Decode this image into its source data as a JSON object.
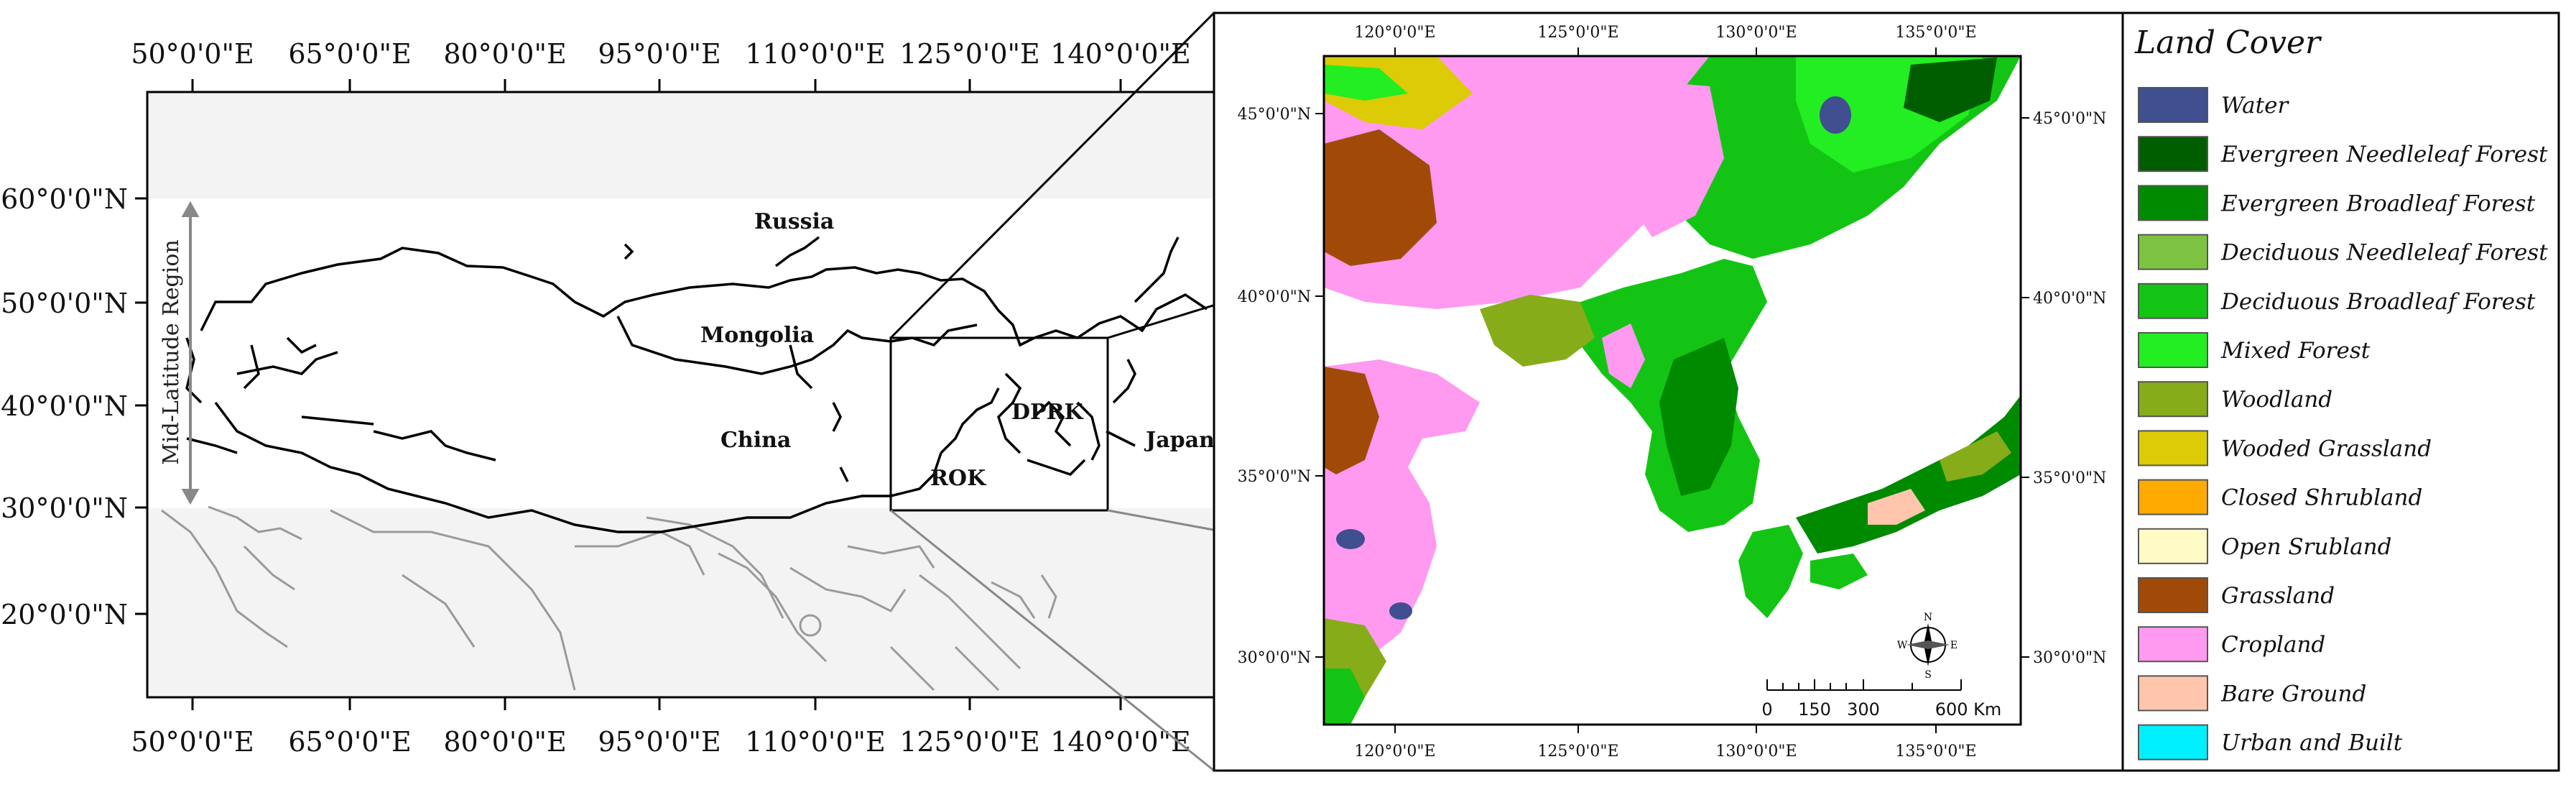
{
  "left_map": {
    "top_lon_labels": [
      "50°0'0\"E",
      "65°0'0\"E",
      "80°0'0\"E",
      "95°0'0\"E",
      "110°0'0\"E",
      "125°0'0\"E",
      "140°0'0\"E"
    ],
    "bottom_lon_labels": [
      "50°0'0\"E",
      "65°0'0\"E",
      "80°0'0\"E",
      "95°0'0\"E",
      "110°0'0\"E",
      "125°0'0\"E",
      "140°0'0\"E"
    ],
    "lat_labels": [
      "60°0'0\"N",
      "50°0'0\"N",
      "40°0'0\"N",
      "30°0'0\"N",
      "20°0'0\"N"
    ],
    "region_label": "Mid-Latitude Region",
    "countries": {
      "russia": "Russia",
      "mongolia": "Mongolia",
      "china": "China",
      "dprk": "DPRK",
      "rok": "ROK",
      "japan": "Japan"
    }
  },
  "right_map": {
    "top_lon_labels": [
      "120°0'0\"E",
      "125°0'0\"E",
      "130°0'0\"E",
      "135°0'0\"E"
    ],
    "bottom_lon_labels": [
      "120°0'0\"E",
      "125°0'0\"E",
      "130°0'0\"E",
      "135°0'0\"E"
    ],
    "left_lat_labels": [
      "45°0'0\"N",
      "40°0'0\"N",
      "35°0'0\"N",
      "30°0'0\"N"
    ],
    "right_lat_labels": [
      "45°0'0\"N",
      "40°0'0\"N",
      "35°0'0\"N",
      "30°0'0\"N"
    ],
    "scale_bar": [
      "0",
      "150",
      "300",
      "600 Km"
    ],
    "compass": {
      "n": "N",
      "s": "S",
      "e": "E",
      "w": "W"
    }
  },
  "legend": {
    "title": "Land Cover",
    "items": [
      {
        "label": "Water",
        "color": "#3f4f8f"
      },
      {
        "label": "Evergreen Needleleaf Forest",
        "color": "#005e00"
      },
      {
        "label": "Evergreen Broadleaf Forest",
        "color": "#008a00"
      },
      {
        "label": "Deciduous Needleleaf Forest",
        "color": "#7ec242"
      },
      {
        "label": "Deciduous Broadleaf Forest",
        "color": "#14c414"
      },
      {
        "label": "Mixed Forest",
        "color": "#22ee22"
      },
      {
        "label": "Woodland",
        "color": "#86ac19"
      },
      {
        "label": "Wooded Grassland",
        "color": "#dccb06"
      },
      {
        "label": "Closed Shrubland",
        "color": "#ffaa00"
      },
      {
        "label": "Open Srubland",
        "color": "#fffac6"
      },
      {
        "label": "Grassland",
        "color": "#a14a08"
      },
      {
        "label": "Cropland",
        "color": "#ff9af0"
      },
      {
        "label": "Bare Ground",
        "color": "#ffc6ad"
      },
      {
        "label": "Urban and Built",
        "color": "#00f0ff"
      }
    ]
  }
}
